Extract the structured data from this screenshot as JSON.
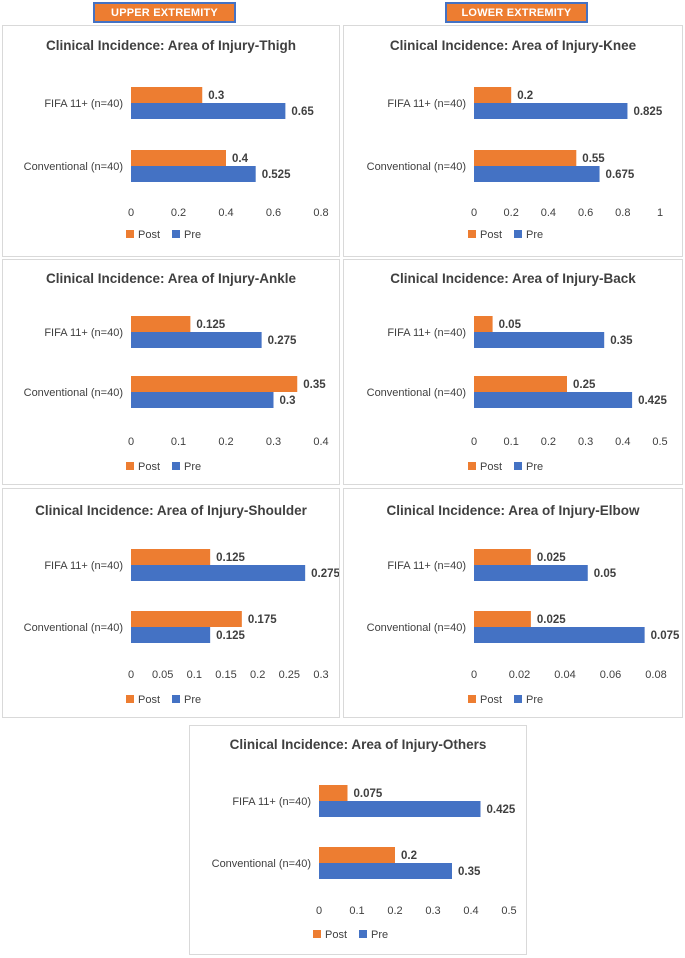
{
  "headers": {
    "upper": "UPPER EXTREMITY",
    "lower": "LOWER EXTREMITY"
  },
  "colors": {
    "post": "#ED7D31",
    "pre": "#4472C4",
    "header_bg": "#ED7D31",
    "header_border": "#4472C4"
  },
  "chart_data": [
    {
      "type": "bar",
      "orientation": "horizontal",
      "title": "Clinical Incidence: Area of Injury-Thigh",
      "categories": [
        "FIFA 11+ (n=40)",
        "Conventional (n=40)"
      ],
      "series": [
        {
          "name": "Post",
          "values": [
            0.3,
            0.4
          ],
          "labels": [
            "0.3",
            "0.4"
          ]
        },
        {
          "name": "Pre",
          "values": [
            0.65,
            0.525
          ],
          "labels": [
            "0.65",
            "0.525"
          ]
        }
      ],
      "xlim": [
        0,
        0.8
      ],
      "ticks": [
        "0",
        "0.2",
        "0.4",
        "0.6",
        "0.8"
      ],
      "legend": [
        "Post",
        "Pre"
      ]
    },
    {
      "type": "bar",
      "orientation": "horizontal",
      "title": "Clinical Incidence: Area of Injury-Knee",
      "categories": [
        "FIFA 11+ (n=40)",
        "Conventional (n=40)"
      ],
      "series": [
        {
          "name": "Post",
          "values": [
            0.2,
            0.55
          ],
          "labels": [
            "0.2",
            "0.55"
          ]
        },
        {
          "name": "Pre",
          "values": [
            0.825,
            0.675
          ],
          "labels": [
            "0.825",
            "0.675"
          ]
        }
      ],
      "xlim": [
        0,
        1
      ],
      "ticks": [
        "0",
        "0.2",
        "0.4",
        "0.6",
        "0.8",
        "1"
      ],
      "legend": [
        "Post",
        "Pre"
      ]
    },
    {
      "type": "bar",
      "orientation": "horizontal",
      "title": "Clinical Incidence: Area of Injury-Ankle",
      "categories": [
        "FIFA 11+ (n=40)",
        "Conventional (n=40)"
      ],
      "series": [
        {
          "name": "Post",
          "values": [
            0.125,
            0.35
          ],
          "labels": [
            "0.125",
            "0.35"
          ]
        },
        {
          "name": "Pre",
          "values": [
            0.275,
            0.3
          ],
          "labels": [
            "0.275",
            "0.3"
          ]
        }
      ],
      "xlim": [
        0,
        0.4
      ],
      "ticks": [
        "0",
        "0.1",
        "0.2",
        "0.3",
        "0.4"
      ],
      "legend": [
        "Post",
        "Pre"
      ]
    },
    {
      "type": "bar",
      "orientation": "horizontal",
      "title": "Clinical Incidence: Area of Injury-Back",
      "categories": [
        "FIFA 11+ (n=40)",
        "Conventional (n=40)"
      ],
      "series": [
        {
          "name": "Post",
          "values": [
            0.05,
            0.25
          ],
          "labels": [
            "0.05",
            "0.25"
          ]
        },
        {
          "name": "Pre",
          "values": [
            0.35,
            0.425
          ],
          "labels": [
            "0.35",
            "0.425"
          ]
        }
      ],
      "xlim": [
        0,
        0.5
      ],
      "ticks": [
        "0",
        "0.1",
        "0.2",
        "0.3",
        "0.4",
        "0.5"
      ],
      "legend": [
        "Post",
        "Pre"
      ]
    },
    {
      "type": "bar",
      "orientation": "horizontal",
      "title": "Clinical Incidence: Area of Injury-Shoulder",
      "categories": [
        "FIFA 11+ (n=40)",
        "Conventional (n=40)"
      ],
      "series": [
        {
          "name": "Post",
          "values": [
            0.125,
            0.175
          ],
          "labels": [
            "0.125",
            "0.175"
          ]
        },
        {
          "name": "Pre",
          "values": [
            0.275,
            0.125
          ],
          "labels": [
            "0.275",
            "0.125"
          ]
        }
      ],
      "xlim": [
        0,
        0.3
      ],
      "ticks": [
        "0",
        "0.05",
        "0.1",
        "0.15",
        "0.2",
        "0.25",
        "0.3"
      ],
      "legend": [
        "Post",
        "Pre"
      ]
    },
    {
      "type": "bar",
      "orientation": "horizontal",
      "title": "Clinical Incidence: Area of Injury-Elbow",
      "categories": [
        "FIFA 11+ (n=40)",
        "Conventional (n=40)"
      ],
      "series": [
        {
          "name": "Post",
          "values": [
            0.025,
            0.025
          ],
          "labels": [
            "0.025",
            "0.025"
          ]
        },
        {
          "name": "Pre",
          "values": [
            0.05,
            0.075
          ],
          "labels": [
            "0.05",
            "0.075"
          ]
        }
      ],
      "xlim": [
        0,
        0.08
      ],
      "ticks": [
        "0",
        "0.02",
        "0.04",
        "0.06",
        "0.08"
      ],
      "legend": [
        "Post",
        "Pre"
      ]
    },
    {
      "type": "bar",
      "orientation": "horizontal",
      "title": "Clinical Incidence: Area of Injury-Others",
      "categories": [
        "FIFA 11+ (n=40)",
        "Conventional (n=40)"
      ],
      "series": [
        {
          "name": "Post",
          "values": [
            0.075,
            0.2
          ],
          "labels": [
            "0.075",
            "0.2"
          ]
        },
        {
          "name": "Pre",
          "values": [
            0.425,
            0.35
          ],
          "labels": [
            "0.425",
            "0.35"
          ]
        }
      ],
      "xlim": [
        0,
        0.5
      ],
      "ticks": [
        "0",
        "0.1",
        "0.2",
        "0.3",
        "0.4",
        "0.5"
      ],
      "legend": [
        "Post",
        "Pre"
      ]
    }
  ]
}
